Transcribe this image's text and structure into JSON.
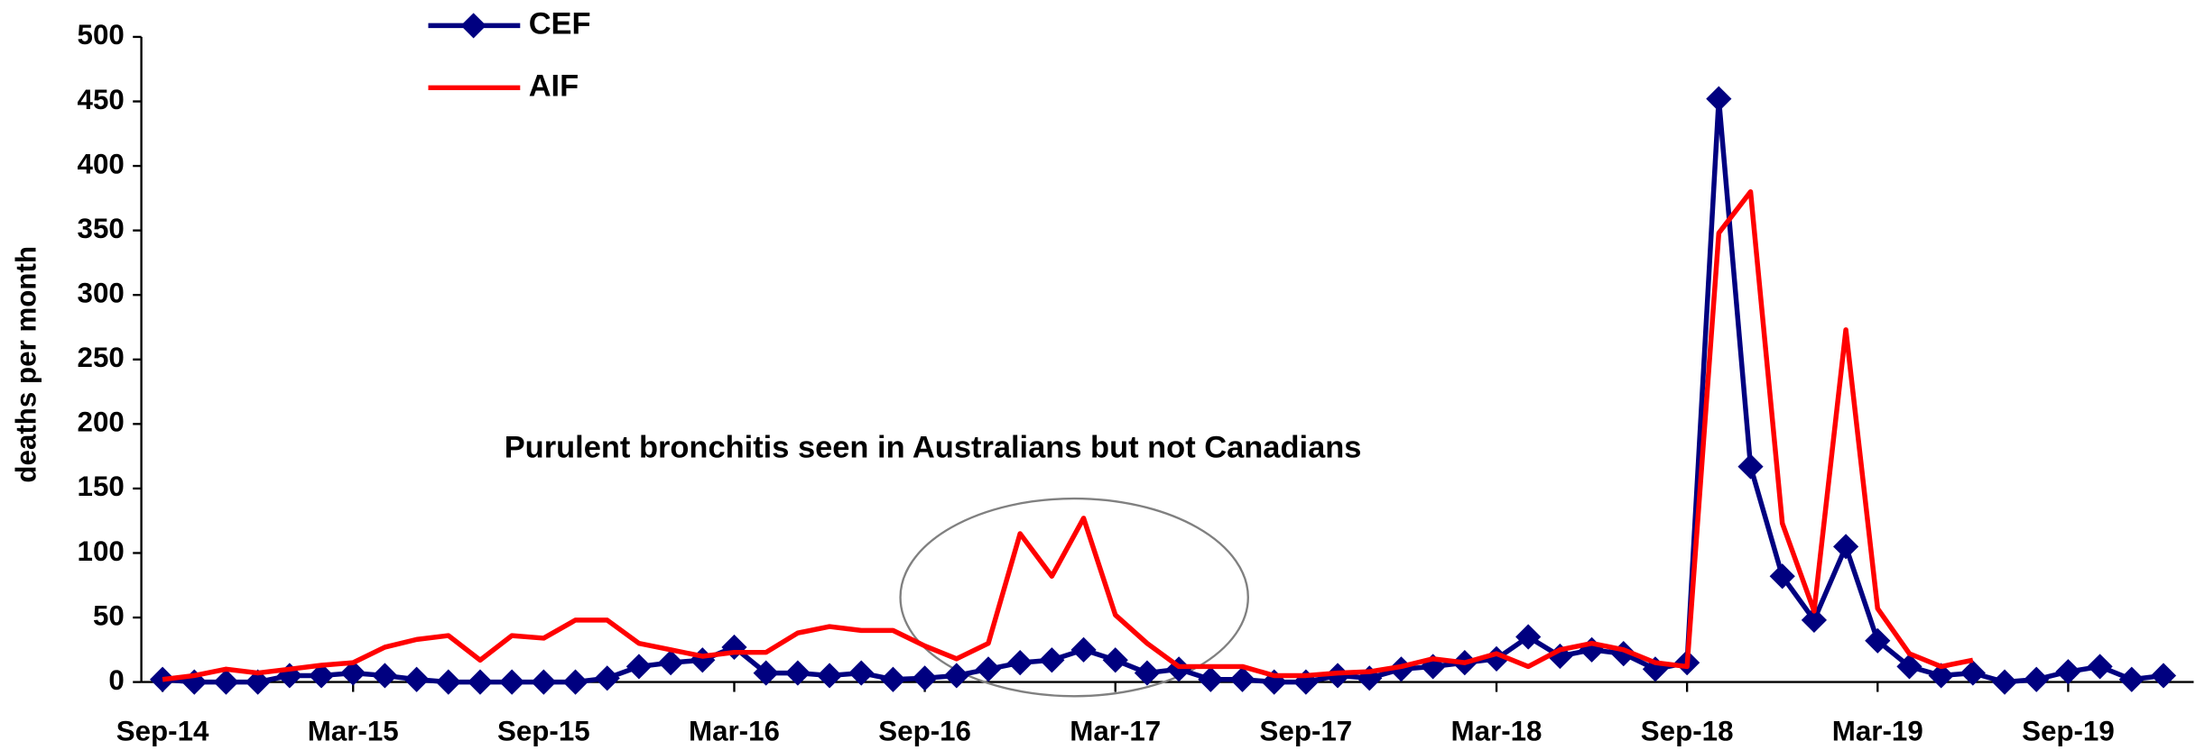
{
  "chart_data": {
    "type": "line",
    "y_label": "deaths per month",
    "annotation": "Purulent bronchitis seen in Australians but not Canadians",
    "categories": [
      "Sep-14",
      null,
      null,
      null,
      null,
      null,
      "Mar-15",
      null,
      null,
      null,
      null,
      null,
      "Sep-15",
      null,
      null,
      null,
      null,
      null,
      "Mar-16",
      null,
      null,
      null,
      null,
      null,
      "Sep-16",
      null,
      null,
      null,
      null,
      null,
      "Mar-17",
      null,
      null,
      null,
      null,
      null,
      "Sep-17",
      null,
      null,
      null,
      null,
      null,
      "Mar-18",
      null,
      null,
      null,
      null,
      null,
      "Sep-18",
      null,
      null,
      null,
      null,
      null,
      "Mar-19",
      null,
      null,
      null,
      null,
      null,
      "Sep-19",
      null,
      null,
      null
    ],
    "series": [
      {
        "name": "CEF",
        "color": "#000080",
        "marker": "diamond",
        "values": [
          2,
          0,
          0,
          0,
          5,
          5,
          7,
          5,
          2,
          0,
          0,
          0,
          0,
          0,
          3,
          12,
          15,
          17,
          27,
          7,
          7,
          5,
          7,
          2,
          3,
          5,
          10,
          15,
          17,
          25,
          17,
          7,
          10,
          2,
          2,
          0,
          0,
          5,
          3,
          10,
          12,
          15,
          18,
          35,
          20,
          25,
          22,
          10,
          15,
          452,
          167,
          82,
          48,
          105,
          32,
          12,
          5,
          7,
          0,
          2,
          8,
          12,
          2,
          5
        ]
      },
      {
        "name": "AIF",
        "color": "#ff0000",
        "marker": "none",
        "values": [
          2,
          5,
          10,
          7,
          10,
          13,
          15,
          27,
          33,
          36,
          17,
          36,
          34,
          48,
          48,
          30,
          25,
          20,
          23,
          23,
          38,
          43,
          40,
          40,
          28,
          18,
          30,
          115,
          82,
          127,
          52,
          30,
          12,
          12,
          12,
          5,
          5,
          7,
          8,
          12,
          18,
          15,
          22,
          12,
          25,
          30,
          25,
          15,
          12,
          348,
          380,
          123,
          55,
          273,
          57,
          22,
          12,
          17,
          null,
          null,
          null,
          null,
          null,
          null
        ]
      }
    ],
    "ylim": [
      0,
      500
    ],
    "yticks": [
      0,
      50,
      100,
      150,
      200,
      250,
      300,
      350,
      400,
      450,
      500
    ],
    "legend": "top-left",
    "grid": false
  }
}
